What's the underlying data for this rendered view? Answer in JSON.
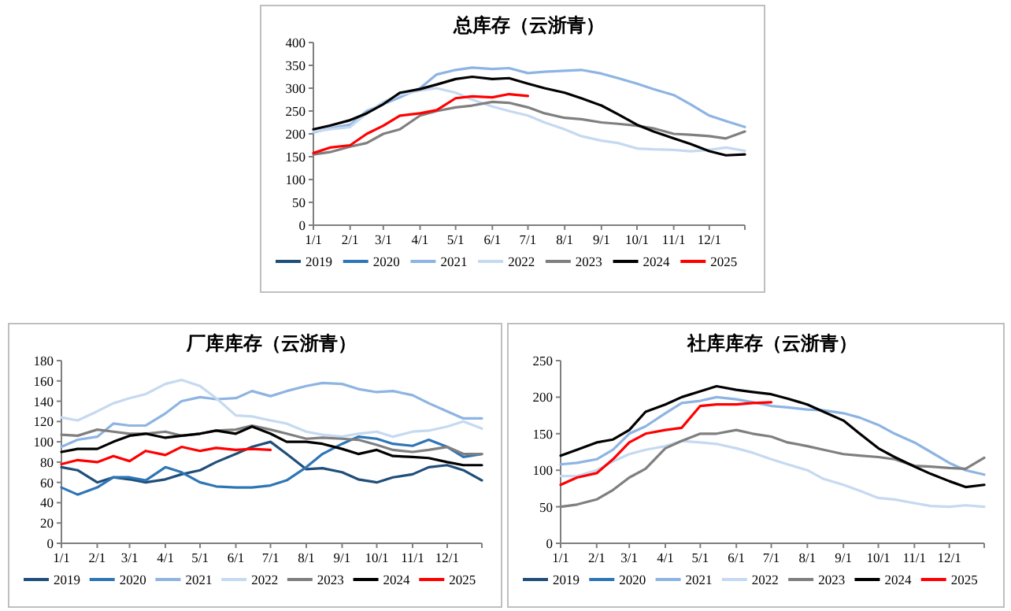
{
  "chart_data": [
    {
      "type": "line",
      "title": "总库存（云浙青）",
      "legend": "bottom",
      "x": [
        "--01-01",
        "--01-15",
        "--02-01",
        "--02-15",
        "--03-01",
        "--03-15",
        "--04-01",
        "--04-15",
        "--05-01",
        "--05-15",
        "--06-01",
        "--06-15",
        "--07-01",
        "--07-15",
        "--08-01",
        "--08-15",
        "--09-01",
        "--09-15",
        "--10-01",
        "--10-15",
        "--11-01",
        "--11-15",
        "--12-01",
        "--12-15",
        "--12-31"
      ],
      "xlim": [
        "--01-01",
        "--12-31"
      ],
      "xticks": [
        {
          "value": "--01-01",
          "label": "1/1"
        },
        {
          "value": "--02-01",
          "label": "2/1"
        },
        {
          "value": "--03-01",
          "label": "3/1"
        },
        {
          "value": "--04-01",
          "label": "4/1"
        },
        {
          "value": "--05-01",
          "label": "5/1"
        },
        {
          "value": "--06-01",
          "label": "6/1"
        },
        {
          "value": "--07-01",
          "label": "7/1"
        },
        {
          "value": "--08-01",
          "label": "8/1"
        },
        {
          "value": "--09-01",
          "label": "9/1"
        },
        {
          "value": "--10-01",
          "label": "10/1"
        },
        {
          "value": "--11-01",
          "label": "11/1"
        },
        {
          "value": "--12-01",
          "label": "12/1"
        }
      ],
      "ylim": [
        0,
        400
      ],
      "yticks": [
        0,
        50,
        100,
        150,
        200,
        250,
        300,
        350,
        400
      ],
      "series": [
        {
          "name": "2019",
          "color": "#1f4e79",
          "values": [
            null,
            null,
            null,
            null,
            null,
            null,
            null,
            null,
            null,
            null,
            null,
            null,
            null,
            null,
            null,
            null,
            null,
            null,
            null,
            null,
            null,
            null,
            null,
            null,
            null
          ]
        },
        {
          "name": "2020",
          "color": "#2e75b6",
          "values": [
            null,
            null,
            null,
            null,
            null,
            null,
            null,
            null,
            null,
            null,
            null,
            null,
            null,
            null,
            null,
            null,
            null,
            null,
            null,
            null,
            null,
            null,
            null,
            null,
            null
          ]
        },
        {
          "name": "2021",
          "color": "#8db4e2",
          "values": [
            203,
            212,
            220,
            250,
            265,
            280,
            300,
            330,
            340,
            345,
            342,
            344,
            333,
            336,
            338,
            340,
            332,
            322,
            310,
            298,
            285,
            265,
            240,
            228,
            215
          ]
        },
        {
          "name": "2022",
          "color": "#c5d9f1",
          "values": [
            205,
            210,
            215,
            245,
            270,
            285,
            295,
            300,
            290,
            275,
            260,
            250,
            240,
            225,
            210,
            195,
            185,
            180,
            168,
            166,
            165,
            162,
            165,
            170,
            163
          ]
        },
        {
          "name": "2023",
          "color": "#7f7f7f",
          "values": [
            155,
            160,
            172,
            180,
            200,
            210,
            240,
            250,
            258,
            262,
            270,
            268,
            258,
            245,
            235,
            232,
            225,
            222,
            218,
            212,
            200,
            198,
            195,
            190,
            205
          ]
        },
        {
          "name": "2024",
          "color": "#000000",
          "values": [
            210,
            218,
            230,
            245,
            265,
            290,
            298,
            308,
            320,
            325,
            320,
            322,
            310,
            300,
            290,
            278,
            262,
            243,
            220,
            205,
            190,
            178,
            162,
            153,
            155
          ]
        },
        {
          "name": "2025",
          "color": "#ff0000",
          "values": [
            158,
            170,
            175,
            200,
            218,
            240,
            245,
            252,
            278,
            282,
            280,
            287,
            283,
            null,
            null,
            null,
            null,
            null,
            null,
            null,
            null,
            null,
            null,
            null,
            null
          ]
        }
      ]
    },
    {
      "type": "line",
      "title": "厂库库存（云浙青）",
      "legend": "bottom",
      "x": [
        "--01-01",
        "--01-15",
        "--02-01",
        "--02-15",
        "--03-01",
        "--03-15",
        "--04-01",
        "--04-15",
        "--05-01",
        "--05-15",
        "--06-01",
        "--06-15",
        "--07-01",
        "--07-15",
        "--08-01",
        "--08-15",
        "--09-01",
        "--09-15",
        "--10-01",
        "--10-15",
        "--11-01",
        "--11-15",
        "--12-01",
        "--12-15",
        "--12-31"
      ],
      "xlim": [
        "--01-01",
        "--12-31"
      ],
      "xticks": [
        {
          "value": "--01-01",
          "label": "1/1"
        },
        {
          "value": "--02-01",
          "label": "2/1"
        },
        {
          "value": "--03-01",
          "label": "3/1"
        },
        {
          "value": "--04-01",
          "label": "4/1"
        },
        {
          "value": "--05-01",
          "label": "5/1"
        },
        {
          "value": "--06-01",
          "label": "6/1"
        },
        {
          "value": "--07-01",
          "label": "7/1"
        },
        {
          "value": "--08-01",
          "label": "8/1"
        },
        {
          "value": "--09-01",
          "label": "9/1"
        },
        {
          "value": "--10-01",
          "label": "10/1"
        },
        {
          "value": "--11-01",
          "label": "11/1"
        },
        {
          "value": "--12-01",
          "label": "12/1"
        }
      ],
      "ylim": [
        0,
        180
      ],
      "yticks": [
        0,
        20,
        40,
        60,
        80,
        100,
        120,
        140,
        160,
        180
      ],
      "series": [
        {
          "name": "2019",
          "color": "#1f4e79",
          "values": [
            75,
            72,
            60,
            65,
            63,
            60,
            63,
            68,
            72,
            80,
            88,
            95,
            100,
            88,
            73,
            74,
            70,
            63,
            60,
            65,
            68,
            75,
            77,
            72,
            62
          ]
        },
        {
          "name": "2020",
          "color": "#2e75b6",
          "values": [
            55,
            48,
            55,
            65,
            65,
            62,
            75,
            70,
            60,
            56,
            55,
            55,
            57,
            62,
            75,
            88,
            98,
            105,
            103,
            98,
            96,
            102,
            95,
            85,
            88
          ]
        },
        {
          "name": "2021",
          "color": "#8db4e2",
          "values": [
            95,
            102,
            105,
            118,
            116,
            116,
            128,
            140,
            144,
            142,
            143,
            150,
            145,
            150,
            155,
            158,
            157,
            152,
            149,
            150,
            146,
            138,
            130,
            123,
            123
          ]
        },
        {
          "name": "2022",
          "color": "#c5d9f1",
          "values": [
            124,
            121,
            130,
            138,
            143,
            147,
            157,
            161,
            155,
            143,
            126,
            125,
            121,
            118,
            110,
            107,
            105,
            108,
            110,
            105,
            110,
            111,
            115,
            120,
            113
          ]
        },
        {
          "name": "2023",
          "color": "#7f7f7f",
          "values": [
            107,
            106,
            112,
            110,
            108,
            108,
            110,
            106,
            108,
            111,
            112,
            116,
            112,
            108,
            103,
            104,
            103,
            102,
            97,
            92,
            90,
            92,
            95,
            88,
            88
          ]
        },
        {
          "name": "2024",
          "color": "#000000",
          "values": [
            90,
            93,
            93,
            100,
            106,
            108,
            104,
            106,
            108,
            111,
            108,
            115,
            108,
            100,
            100,
            98,
            93,
            88,
            92,
            86,
            85,
            84,
            80,
            77,
            77
          ]
        },
        {
          "name": "2025",
          "color": "#ff0000",
          "values": [
            78,
            82,
            80,
            86,
            81,
            91,
            87,
            95,
            91,
            94,
            92,
            93,
            92,
            null,
            null,
            null,
            null,
            null,
            null,
            null,
            null,
            null,
            null,
            null,
            null
          ]
        }
      ]
    },
    {
      "type": "line",
      "title": "社库库存（云浙青）",
      "legend": "bottom",
      "x": [
        "--01-01",
        "--01-15",
        "--02-01",
        "--02-15",
        "--03-01",
        "--03-15",
        "--04-01",
        "--04-15",
        "--05-01",
        "--05-15",
        "--06-01",
        "--06-15",
        "--07-01",
        "--07-15",
        "--08-01",
        "--08-15",
        "--09-01",
        "--09-15",
        "--10-01",
        "--10-15",
        "--11-01",
        "--11-15",
        "--12-01",
        "--12-15",
        "--12-31"
      ],
      "xlim": [
        "--01-01",
        "--12-31"
      ],
      "xticks": [
        {
          "value": "--01-01",
          "label": "1/1"
        },
        {
          "value": "--02-01",
          "label": "2/1"
        },
        {
          "value": "--03-01",
          "label": "3/1"
        },
        {
          "value": "--04-01",
          "label": "4/1"
        },
        {
          "value": "--05-01",
          "label": "5/1"
        },
        {
          "value": "--06-01",
          "label": "6/1"
        },
        {
          "value": "--07-01",
          "label": "7/1"
        },
        {
          "value": "--08-01",
          "label": "8/1"
        },
        {
          "value": "--09-01",
          "label": "9/1"
        },
        {
          "value": "--10-01",
          "label": "10/1"
        },
        {
          "value": "--11-01",
          "label": "11/1"
        },
        {
          "value": "--12-01",
          "label": "12/1"
        }
      ],
      "ylim": [
        0,
        250
      ],
      "yticks": [
        0,
        50,
        100,
        150,
        200,
        250
      ],
      "series": [
        {
          "name": "2019",
          "color": "#1f4e79",
          "values": [
            null,
            null,
            null,
            null,
            null,
            null,
            null,
            null,
            null,
            null,
            null,
            null,
            null,
            null,
            null,
            null,
            null,
            null,
            null,
            null,
            null,
            null,
            null,
            null,
            null
          ]
        },
        {
          "name": "2020",
          "color": "#2e75b6",
          "values": [
            null,
            null,
            null,
            null,
            null,
            null,
            null,
            null,
            null,
            null,
            null,
            null,
            null,
            null,
            null,
            null,
            null,
            null,
            null,
            null,
            null,
            null,
            null,
            null,
            null
          ]
        },
        {
          "name": "2021",
          "color": "#8db4e2",
          "values": [
            108,
            110,
            115,
            128,
            150,
            160,
            178,
            192,
            195,
            200,
            197,
            193,
            188,
            186,
            183,
            182,
            178,
            172,
            162,
            150,
            138,
            125,
            110,
            100,
            94
          ]
        },
        {
          "name": "2022",
          "color": "#c5d9f1",
          "values": [
            92,
            92,
            100,
            112,
            122,
            128,
            133,
            140,
            138,
            136,
            130,
            124,
            115,
            108,
            100,
            88,
            80,
            72,
            62,
            60,
            55,
            51,
            50,
            52,
            50
          ]
        },
        {
          "name": "2023",
          "color": "#7f7f7f",
          "values": [
            50,
            53,
            60,
            73,
            90,
            102,
            130,
            140,
            150,
            150,
            155,
            150,
            146,
            138,
            133,
            128,
            122,
            120,
            118,
            115,
            106,
            105,
            103,
            102,
            117
          ]
        },
        {
          "name": "2024",
          "color": "#000000",
          "values": [
            120,
            128,
            138,
            142,
            155,
            180,
            190,
            200,
            208,
            215,
            210,
            207,
            204,
            198,
            190,
            180,
            168,
            150,
            130,
            118,
            105,
            95,
            85,
            77,
            80
          ]
        },
        {
          "name": "2025",
          "color": "#ff0000",
          "values": [
            80,
            90,
            96,
            115,
            138,
            150,
            155,
            158,
            188,
            190,
            190,
            192,
            193,
            null,
            null,
            null,
            null,
            null,
            null,
            null,
            null,
            null,
            null,
            null,
            null
          ]
        }
      ]
    }
  ]
}
